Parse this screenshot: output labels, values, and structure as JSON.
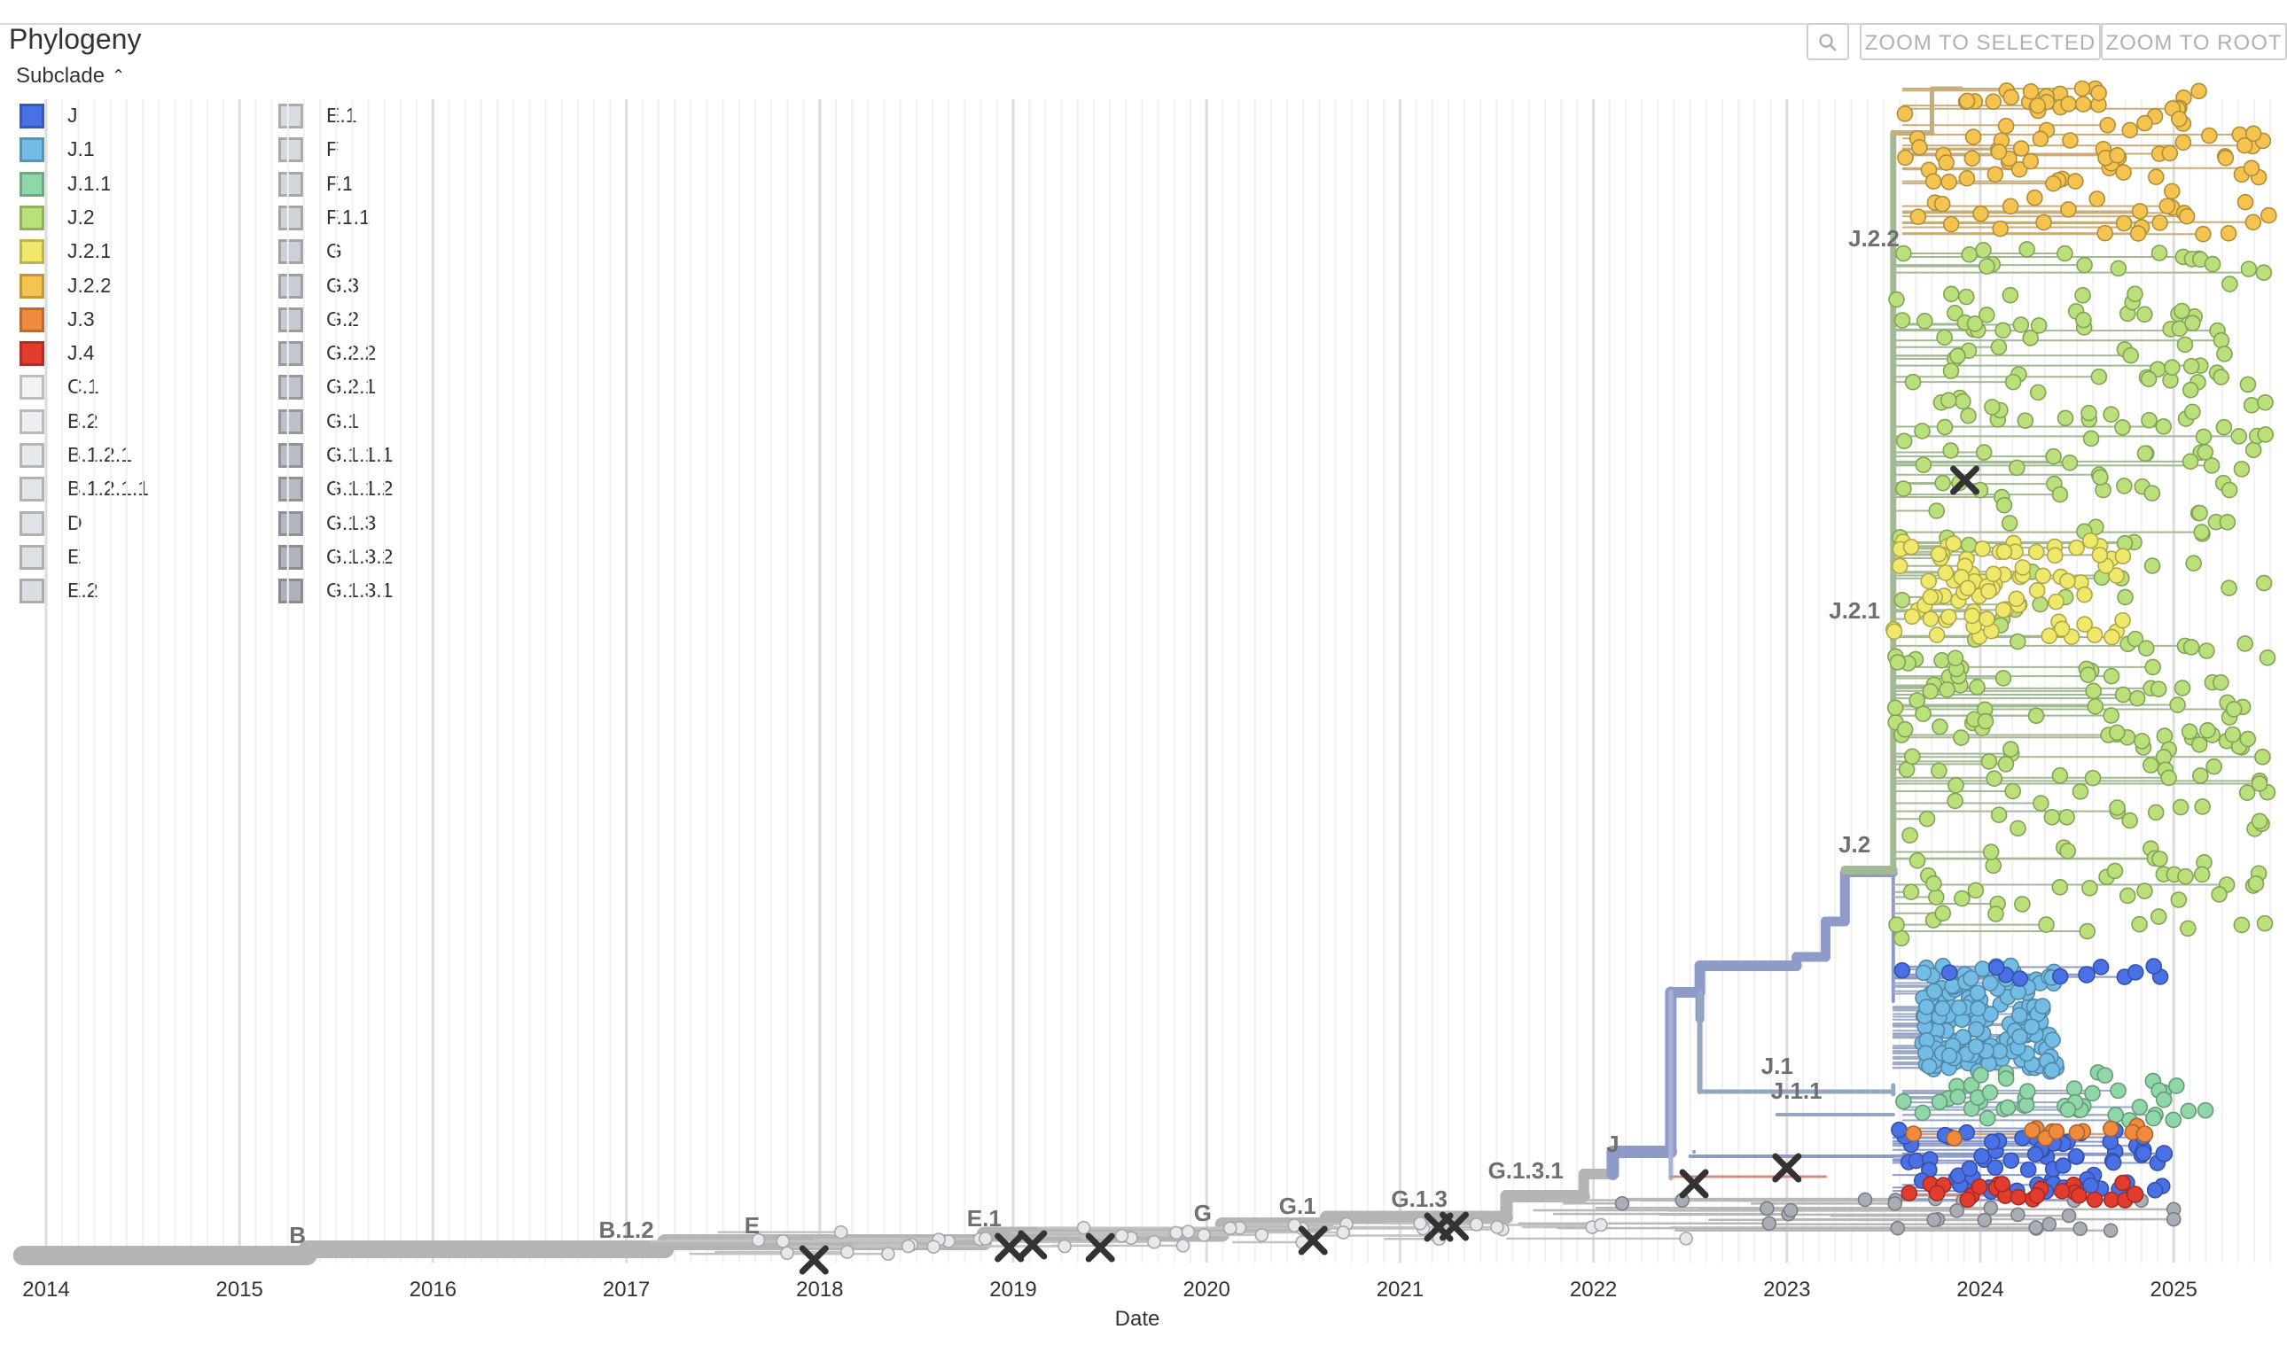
{
  "header": {
    "title": "Phylogeny",
    "subclade_toggle": "Subclade"
  },
  "buttons": {
    "zoom_selected": "ZOOM TO SELECTED",
    "zoom_root": "ZOOM TO ROOT"
  },
  "icons": {
    "search": "magnifier-icon",
    "collapse": "chevron-up-icon",
    "divergence_marker": "x-marker-icon"
  },
  "legend": {
    "title": "Subclade",
    "items": [
      {
        "label": "J",
        "color": "#4a70e6"
      },
      {
        "label": "J.1",
        "color": "#73bce6"
      },
      {
        "label": "J.1.1",
        "color": "#8fd6a8"
      },
      {
        "label": "J.2",
        "color": "#b9e07a"
      },
      {
        "label": "J.2.1",
        "color": "#f0e86a"
      },
      {
        "label": "J.2.2",
        "color": "#f5c450"
      },
      {
        "label": "J.3",
        "color": "#ef8a3e"
      },
      {
        "label": "J.4",
        "color": "#e23c2e"
      },
      {
        "label": "C.1",
        "color": "#f2f3f5"
      },
      {
        "label": "B.2",
        "color": "#eceef1"
      },
      {
        "label": "B.1.2.1",
        "color": "#e6e9ec"
      },
      {
        "label": "B.1.2.1.1",
        "color": "#e2e5e9"
      },
      {
        "label": "D",
        "color": "#dfe2e6"
      },
      {
        "label": "E",
        "color": "#dde0e4"
      },
      {
        "label": "E.2",
        "color": "#dadde2"
      },
      {
        "label": "E.1",
        "color": "#d9dce1"
      },
      {
        "label": "F",
        "color": "#d6dade"
      },
      {
        "label": "F.1",
        "color": "#d3d7dc"
      },
      {
        "label": "F.1.1",
        "color": "#d0d4d9"
      },
      {
        "label": "G",
        "color": "#cdd1d7"
      },
      {
        "label": "G.3",
        "color": "#c9cdd4"
      },
      {
        "label": "G.2",
        "color": "#c6cad1"
      },
      {
        "label": "G.2.2",
        "color": "#c3c7ce"
      },
      {
        "label": "G.2.1",
        "color": "#c0c4cb"
      },
      {
        "label": "G.1",
        "color": "#bcc0c8"
      },
      {
        "label": "G.1.1.1",
        "color": "#b9bdc5"
      },
      {
        "label": "G.1.1.2",
        "color": "#b6bac2"
      },
      {
        "label": "G.1.3",
        "color": "#b3b7bf"
      },
      {
        "label": "G.1.3.2",
        "color": "#b0b4bc"
      },
      {
        "label": "G.1.3.1",
        "color": "#adb1b9"
      }
    ]
  },
  "chart_data": {
    "type": "phylogeny-tree",
    "xlabel": "Date",
    "x_ticks": [
      "2014",
      "2015",
      "2016",
      "2017",
      "2018",
      "2019",
      "2020",
      "2021",
      "2022",
      "2023",
      "2024",
      "2025"
    ],
    "xlim": [
      2013.9,
      2025.55
    ],
    "grid": true,
    "legend_placement": "top-left",
    "branch_colors": {
      "backbone": "#b4b4b4",
      "J": "#8e9bc9",
      "J.2": "#a3b894",
      "J.2.2": "#c7ad7a",
      "J.4_branch": "#d68c80",
      "J.3_branch": "#e0a070"
    },
    "clade_labels": [
      {
        "label": "B",
        "date": 2015.3
      },
      {
        "label": "B.1.2",
        "date": 2017.0
      },
      {
        "label": "E",
        "date": 2017.65
      },
      {
        "label": "E.1",
        "date": 2018.85
      },
      {
        "label": "G",
        "date": 2019.98
      },
      {
        "label": "G.1",
        "date": 2020.47
      },
      {
        "label": "G.1.3",
        "date": 2021.1
      },
      {
        "label": "G.1.3.1",
        "date": 2021.65
      },
      {
        "label": "J",
        "date": 2022.1
      },
      {
        "label": "J.1",
        "date": 2022.95
      },
      {
        "label": "J.1.1",
        "date": 2023.05
      },
      {
        "label": "J.2",
        "date": 2023.35
      },
      {
        "label": "J.2.1",
        "date": 2023.35
      },
      {
        "label": "J.2.2",
        "date": 2023.45
      }
    ],
    "mutation_markers": [
      2017.97,
      2018.98,
      2019.1,
      2019.45,
      2020.55,
      2021.2,
      2021.28,
      2022.52,
      2023.0,
      2023.92
    ],
    "clusters": [
      {
        "subclade": "J.2.2",
        "date_range": [
          2023.6,
          2025.5
        ],
        "count": 110
      },
      {
        "subclade": "J.2",
        "date_range": [
          2023.55,
          2025.5
        ],
        "count": 330
      },
      {
        "subclade": "J.2.1",
        "date_range": [
          2023.55,
          2024.75
        ],
        "count": 90
      },
      {
        "subclade": "J.1",
        "date_range": [
          2023.55,
          2024.5
        ],
        "count": 160
      },
      {
        "subclade": "J.1.1",
        "date_range": [
          2023.6,
          2025.2
        ],
        "count": 45
      },
      {
        "subclade": "J",
        "date_range": [
          2023.55,
          2024.95
        ],
        "count": 80
      },
      {
        "subclade": "J.3",
        "date_range": [
          2023.6,
          2024.85
        ],
        "count": 12
      },
      {
        "subclade": "J.4",
        "date_range": [
          2023.6,
          2024.8
        ],
        "count": 24
      }
    ]
  }
}
